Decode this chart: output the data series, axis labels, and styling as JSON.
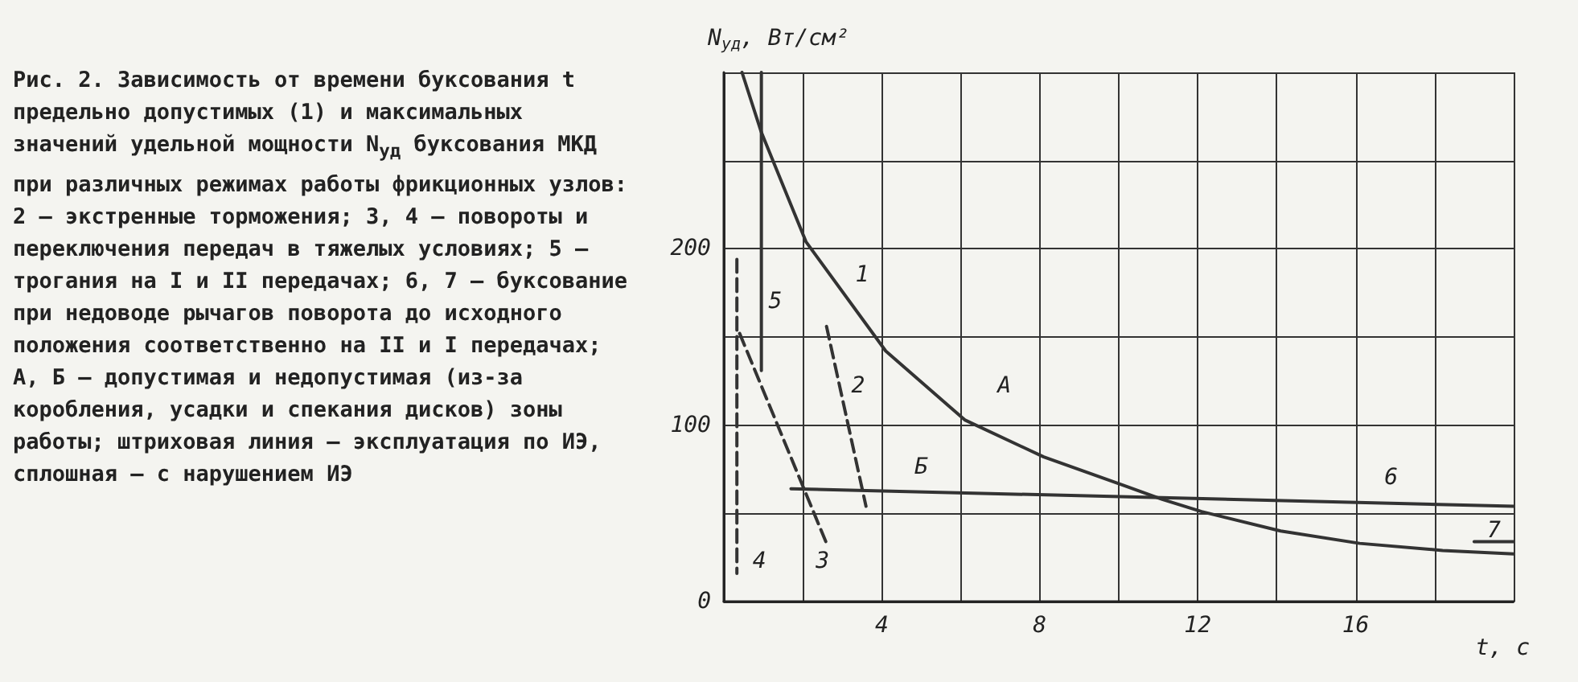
{
  "chart_data": {
    "type": "line",
    "title": "Рис. 2. Зависимость от времени буксования t предельно допустимых (1) и максимальных значений удельной мощности N$_{уд}$ буксования МКД при различных режимах работы фрикционных узлов: 2 – экстренные торможения; 3, 4 – повороты и переключения передач в тяжелых условиях; 5 – трогания на I и II передачах; 6, 7 – буксование при недоводе рычагов поворота до исходного положения соответственно на II и I передачах; А, Б – допустимая и недопустимая (из-за коробления, усадки и спекания дисков) зоны работы; штриховая линия – эксплуатация по ИЭ, сплошная – с нарушением ИЭ",
    "xlabel": "t, с",
    "ylabel": "N$_{уд}$, Вт/см²",
    "xlim": [
      0,
      20
    ],
    "ylim": [
      0,
      300
    ],
    "xticks": [
      {
        "value": 0,
        "label": null
      },
      {
        "value": 2,
        "label": null
      },
      4,
      {
        "value": 6,
        "label": null
      },
      8,
      {
        "value": 10,
        "label": null
      },
      12,
      {
        "value": 14,
        "label": null
      },
      16,
      {
        "value": 18,
        "label": null
      },
      {
        "value": 20,
        "label": null
      }
    ],
    "yticks": [
      0,
      {
        "value": 50,
        "label": null
      },
      100,
      {
        "value": 150,
        "label": null
      },
      200,
      {
        "value": 250,
        "label": null
      },
      {
        "value": 300,
        "label": null
      }
    ],
    "grid": true,
    "marker": "none",
    "series": [
      {
        "color": "#333333",
        "line_style": "solid",
        "x": [
          0.46,
          0.95,
          2.08,
          4.1,
          6.1,
          8.1,
          10.1,
          11.1,
          12.1,
          14.1,
          16.1,
          18.2,
          20
        ],
        "values": [
          300,
          266,
          204,
          142,
          103,
          82,
          66,
          58,
          51,
          40,
          33,
          29,
          27
        ]
      },
      {
        "color": "#333333",
        "line_style": "dashed",
        "x": [
          2.6,
          3.6
        ],
        "values": [
          156,
          54
        ]
      },
      {
        "color": "#333333",
        "line_style": "dashed",
        "x": [
          0.4,
          2.6
        ],
        "values": [
          152,
          33
        ]
      },
      {
        "color": "#333333",
        "line_style": "dashed",
        "x": [
          0.33,
          0.33
        ],
        "values": [
          194,
          16
        ]
      },
      {
        "color": "#333333",
        "line_style": "solid",
        "x": [
          0.95,
          0.95
        ],
        "values": [
          300,
          131
        ]
      },
      {
        "color": "#333333",
        "line_style": "solid",
        "x": [
          1.7,
          20
        ],
        "values": [
          64,
          54
        ]
      },
      {
        "color": "#333333",
        "line_style": "solid",
        "x": [
          19,
          20
        ],
        "values": [
          34,
          34
        ]
      }
    ],
    "annotations": [
      {
        "text": "1",
        "x": 3.5,
        "y": 185
      },
      {
        "text": "2",
        "x": 3.4,
        "y": 122
      },
      {
        "text": "3",
        "x": 2.5,
        "y": 23
      },
      {
        "text": "4",
        "x": 0.9,
        "y": 23
      },
      {
        "text": "5",
        "x": 1.3,
        "y": 170
      },
      {
        "text": "6",
        "x": 16.9,
        "y": 70
      },
      {
        "text": "7",
        "x": 19.5,
        "y": 40
      },
      {
        "text": "А",
        "x": 7.1,
        "y": 122
      },
      {
        "text": "Б",
        "x": 5,
        "y": 76
      }
    ]
  }
}
